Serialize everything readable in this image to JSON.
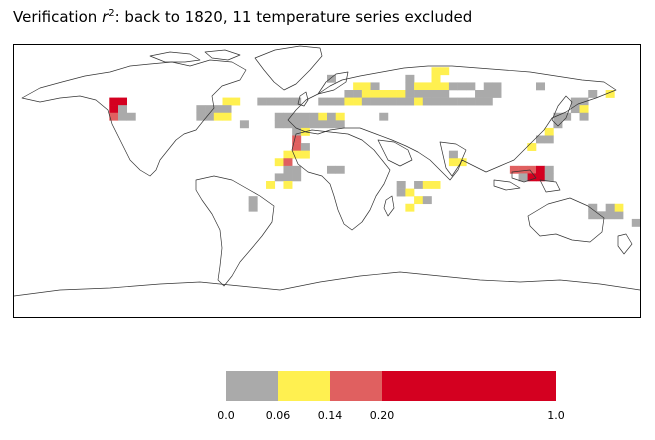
{
  "chart_data": {
    "type": "heatmap",
    "title": {
      "prefix": "Verification ",
      "var": "r",
      "sup": "2",
      "rest": ": back to 1820, 11 temperature series excluded"
    },
    "projection": "equirectangular",
    "extent": {
      "lon": [
        -180,
        180
      ],
      "lat": [
        -90,
        90
      ]
    },
    "cell_size_deg": 5,
    "legend": {
      "position": "bottom-center",
      "bins": [
        {
          "from": 0.0,
          "to": 0.06,
          "color": "#aaaaaa"
        },
        {
          "from": 0.06,
          "to": 0.14,
          "color": "#fff050"
        },
        {
          "from": 0.14,
          "to": 0.2,
          "color": "#e06060"
        },
        {
          "from": 0.2,
          "to": 1.0,
          "color": "#d40020"
        }
      ],
      "tick_labels": [
        "0.0",
        "0.06",
        "0.14",
        "0.20",
        "1.0"
      ]
    },
    "cells": [
      {
        "lon": 0,
        "lat": 65,
        "v": 0.03
      },
      {
        "lon": 45,
        "lat": 65,
        "v": 0.03
      },
      {
        "lon": 60,
        "lat": 70,
        "v": 0.08
      },
      {
        "lon": 65,
        "lat": 70,
        "v": 0.08
      },
      {
        "lon": 60,
        "lat": 65,
        "v": 0.08
      },
      {
        "lon": 15,
        "lat": 60,
        "v": 0.08
      },
      {
        "lon": 20,
        "lat": 60,
        "v": 0.08
      },
      {
        "lon": 25,
        "lat": 60,
        "v": 0.03
      },
      {
        "lon": 45,
        "lat": 60,
        "v": 0.03
      },
      {
        "lon": 50,
        "lat": 60,
        "v": 0.08
      },
      {
        "lon": 55,
        "lat": 60,
        "v": 0.08
      },
      {
        "lon": 60,
        "lat": 60,
        "v": 0.08
      },
      {
        "lon": 65,
        "lat": 60,
        "v": 0.08
      },
      {
        "lon": 70,
        "lat": 60,
        "v": 0.03
      },
      {
        "lon": 75,
        "lat": 60,
        "v": 0.03
      },
      {
        "lon": 80,
        "lat": 60,
        "v": 0.03
      },
      {
        "lon": 90,
        "lat": 60,
        "v": 0.03
      },
      {
        "lon": 95,
        "lat": 60,
        "v": 0.03
      },
      {
        "lon": 120,
        "lat": 60,
        "v": 0.03
      },
      {
        "lon": 10,
        "lat": 55,
        "v": 0.03
      },
      {
        "lon": 15,
        "lat": 55,
        "v": 0.03
      },
      {
        "lon": 20,
        "lat": 55,
        "v": 0.08
      },
      {
        "lon": 25,
        "lat": 55,
        "v": 0.08
      },
      {
        "lon": 30,
        "lat": 55,
        "v": 0.08
      },
      {
        "lon": 35,
        "lat": 55,
        "v": 0.08
      },
      {
        "lon": 40,
        "lat": 55,
        "v": 0.08
      },
      {
        "lon": 45,
        "lat": 55,
        "v": 0.03
      },
      {
        "lon": 50,
        "lat": 55,
        "v": 0.03
      },
      {
        "lon": 55,
        "lat": 55,
        "v": 0.03
      },
      {
        "lon": 60,
        "lat": 55,
        "v": 0.03
      },
      {
        "lon": 65,
        "lat": 55,
        "v": 0.03
      },
      {
        "lon": 85,
        "lat": 55,
        "v": 0.03
      },
      {
        "lon": 90,
        "lat": 55,
        "v": 0.03
      },
      {
        "lon": 95,
        "lat": 55,
        "v": 0.03
      },
      {
        "lon": 150,
        "lat": 55,
        "v": 0.03
      },
      {
        "lon": 160,
        "lat": 55,
        "v": 0.08
      },
      {
        "lon": -60,
        "lat": 50,
        "v": 0.08
      },
      {
        "lon": -55,
        "lat": 50,
        "v": 0.08
      },
      {
        "lon": -40,
        "lat": 50,
        "v": 0.03
      },
      {
        "lon": -35,
        "lat": 50,
        "v": 0.03
      },
      {
        "lon": -30,
        "lat": 50,
        "v": 0.03
      },
      {
        "lon": -25,
        "lat": 50,
        "v": 0.03
      },
      {
        "lon": -20,
        "lat": 50,
        "v": 0.03
      },
      {
        "lon": -5,
        "lat": 50,
        "v": 0.03
      },
      {
        "lon": 0,
        "lat": 50,
        "v": 0.03
      },
      {
        "lon": 5,
        "lat": 50,
        "v": 0.03
      },
      {
        "lon": 10,
        "lat": 50,
        "v": 0.08
      },
      {
        "lon": 15,
        "lat": 50,
        "v": 0.08
      },
      {
        "lon": 20,
        "lat": 50,
        "v": 0.03
      },
      {
        "lon": 25,
        "lat": 50,
        "v": 0.03
      },
      {
        "lon": 30,
        "lat": 50,
        "v": 0.03
      },
      {
        "lon": 35,
        "lat": 50,
        "v": 0.03
      },
      {
        "lon": 40,
        "lat": 50,
        "v": 0.03
      },
      {
        "lon": 45,
        "lat": 50,
        "v": 0.03
      },
      {
        "lon": 50,
        "lat": 50,
        "v": 0.08
      },
      {
        "lon": 55,
        "lat": 50,
        "v": 0.03
      },
      {
        "lon": 60,
        "lat": 50,
        "v": 0.03
      },
      {
        "lon": 65,
        "lat": 50,
        "v": 0.03
      },
      {
        "lon": 70,
        "lat": 50,
        "v": 0.03
      },
      {
        "lon": 75,
        "lat": 50,
        "v": 0.03
      },
      {
        "lon": 80,
        "lat": 50,
        "v": 0.03
      },
      {
        "lon": 85,
        "lat": 50,
        "v": 0.03
      },
      {
        "lon": 90,
        "lat": 50,
        "v": 0.03
      },
      {
        "lon": 140,
        "lat": 50,
        "v": 0.03
      },
      {
        "lon": 145,
        "lat": 50,
        "v": 0.03
      },
      {
        "lon": -125,
        "lat": 50,
        "v": 0.5
      },
      {
        "lon": -120,
        "lat": 50,
        "v": 0.5
      },
      {
        "lon": -125,
        "lat": 45,
        "v": 0.5
      },
      {
        "lon": -125,
        "lat": 40,
        "v": 0.16
      },
      {
        "lon": -120,
        "lat": 45,
        "v": 0.03
      },
      {
        "lon": -120,
        "lat": 40,
        "v": 0.03
      },
      {
        "lon": -115,
        "lat": 40,
        "v": 0.03
      },
      {
        "lon": -75,
        "lat": 45,
        "v": 0.03
      },
      {
        "lon": -70,
        "lat": 45,
        "v": 0.03
      },
      {
        "lon": -65,
        "lat": 45,
        "v": 0.03
      },
      {
        "lon": -60,
        "lat": 45,
        "v": 0.03
      },
      {
        "lon": -75,
        "lat": 40,
        "v": 0.03
      },
      {
        "lon": -70,
        "lat": 40,
        "v": 0.03
      },
      {
        "lon": -65,
        "lat": 40,
        "v": 0.08
      },
      {
        "lon": -60,
        "lat": 40,
        "v": 0.08
      },
      {
        "lon": -50,
        "lat": 35,
        "v": 0.03
      },
      {
        "lon": -30,
        "lat": 40,
        "v": 0.03
      },
      {
        "lon": -25,
        "lat": 40,
        "v": 0.03
      },
      {
        "lon": -20,
        "lat": 40,
        "v": 0.03
      },
      {
        "lon": -15,
        "lat": 40,
        "v": 0.03
      },
      {
        "lon": -10,
        "lat": 40,
        "v": 0.03
      },
      {
        "lon": -5,
        "lat": 40,
        "v": 0.08
      },
      {
        "lon": 0,
        "lat": 40,
        "v": 0.03
      },
      {
        "lon": 5,
        "lat": 40,
        "v": 0.08
      },
      {
        "lon": 30,
        "lat": 40,
        "v": 0.03
      },
      {
        "lon": -30,
        "lat": 35,
        "v": 0.03
      },
      {
        "lon": -25,
        "lat": 35,
        "v": 0.03
      },
      {
        "lon": -20,
        "lat": 35,
        "v": 0.03
      },
      {
        "lon": -15,
        "lat": 35,
        "v": 0.03
      },
      {
        "lon": -10,
        "lat": 35,
        "v": 0.03
      },
      {
        "lon": -5,
        "lat": 35,
        "v": 0.03
      },
      {
        "lon": 0,
        "lat": 35,
        "v": 0.03
      },
      {
        "lon": 5,
        "lat": 35,
        "v": 0.03
      },
      {
        "lon": -20,
        "lat": 30,
        "v": 0.03
      },
      {
        "lon": -20,
        "lat": 25,
        "v": 0.16
      },
      {
        "lon": -20,
        "lat": 20,
        "v": 0.16
      },
      {
        "lon": -20,
        "lat": 15,
        "v": 0.08
      },
      {
        "lon": -15,
        "lat": 30,
        "v": 0.08
      },
      {
        "lon": -15,
        "lat": 20,
        "v": 0.03
      },
      {
        "lon": -25,
        "lat": 15,
        "v": 0.08
      },
      {
        "lon": -15,
        "lat": 15,
        "v": 0.08
      },
      {
        "lon": -30,
        "lat": 10,
        "v": 0.08
      },
      {
        "lon": -25,
        "lat": 10,
        "v": 0.16
      },
      {
        "lon": -25,
        "lat": 5,
        "v": 0.03
      },
      {
        "lon": -20,
        "lat": 5,
        "v": 0.03
      },
      {
        "lon": -20,
        "lat": 0,
        "v": 0.03
      },
      {
        "lon": -25,
        "lat": 0,
        "v": 0.03
      },
      {
        "lon": -30,
        "lat": 0,
        "v": 0.03
      },
      {
        "lon": -25,
        "lat": -5,
        "v": 0.08
      },
      {
        "lon": -35,
        "lat": -5,
        "v": 0.08
      },
      {
        "lon": 0,
        "lat": 5,
        "v": 0.03
      },
      {
        "lon": 5,
        "lat": 5,
        "v": 0.03
      },
      {
        "lon": -45,
        "lat": -15,
        "v": 0.03
      },
      {
        "lon": -45,
        "lat": -20,
        "v": 0.03
      },
      {
        "lon": 40,
        "lat": -5,
        "v": 0.03
      },
      {
        "lon": 40,
        "lat": -10,
        "v": 0.03
      },
      {
        "lon": 45,
        "lat": -10,
        "v": 0.08
      },
      {
        "lon": 50,
        "lat": -5,
        "v": 0.03
      },
      {
        "lon": 55,
        "lat": -5,
        "v": 0.08
      },
      {
        "lon": 60,
        "lat": -5,
        "v": 0.08
      },
      {
        "lon": 50,
        "lat": -15,
        "v": 0.08
      },
      {
        "lon": 45,
        "lat": -20,
        "v": 0.08
      },
      {
        "lon": 55,
        "lat": -15,
        "v": 0.03
      },
      {
        "lon": 130,
        "lat": 40,
        "v": 0.03
      },
      {
        "lon": 135,
        "lat": 40,
        "v": 0.03
      },
      {
        "lon": 140,
        "lat": 45,
        "v": 0.03
      },
      {
        "lon": 145,
        "lat": 45,
        "v": 0.08
      },
      {
        "lon": 145,
        "lat": 40,
        "v": 0.03
      },
      {
        "lon": 130,
        "lat": 35,
        "v": 0.03
      },
      {
        "lon": 125,
        "lat": 30,
        "v": 0.08
      },
      {
        "lon": 120,
        "lat": 25,
        "v": 0.03
      },
      {
        "lon": 125,
        "lat": 25,
        "v": 0.03
      },
      {
        "lon": 115,
        "lat": 20,
        "v": 0.08
      },
      {
        "lon": 70,
        "lat": 15,
        "v": 0.03
      },
      {
        "lon": 70,
        "lat": 10,
        "v": 0.08
      },
      {
        "lon": 75,
        "lat": 10,
        "v": 0.08
      },
      {
        "lon": 105,
        "lat": 5,
        "v": 0.16
      },
      {
        "lon": 110,
        "lat": 5,
        "v": 0.16
      },
      {
        "lon": 115,
        "lat": 5,
        "v": 0.16
      },
      {
        "lon": 115,
        "lat": 0,
        "v": 0.5
      },
      {
        "lon": 120,
        "lat": 5,
        "v": 0.5
      },
      {
        "lon": 120,
        "lat": 0,
        "v": 0.5
      },
      {
        "lon": 110,
        "lat": 0,
        "v": 0.03
      },
      {
        "lon": 125,
        "lat": 5,
        "v": 0.03
      },
      {
        "lon": 125,
        "lat": 0,
        "v": 0.03
      },
      {
        "lon": 150,
        "lat": -25,
        "v": 0.03
      },
      {
        "lon": 155,
        "lat": -25,
        "v": 0.03
      },
      {
        "lon": 160,
        "lat": -25,
        "v": 0.03
      },
      {
        "lon": 165,
        "lat": -25,
        "v": 0.03
      },
      {
        "lon": 165,
        "lat": -20,
        "v": 0.08
      },
      {
        "lon": 150,
        "lat": -20,
        "v": 0.03
      },
      {
        "lon": 160,
        "lat": -20,
        "v": 0.03
      },
      {
        "lon": 175,
        "lat": -30,
        "v": 0.03
      }
    ]
  }
}
